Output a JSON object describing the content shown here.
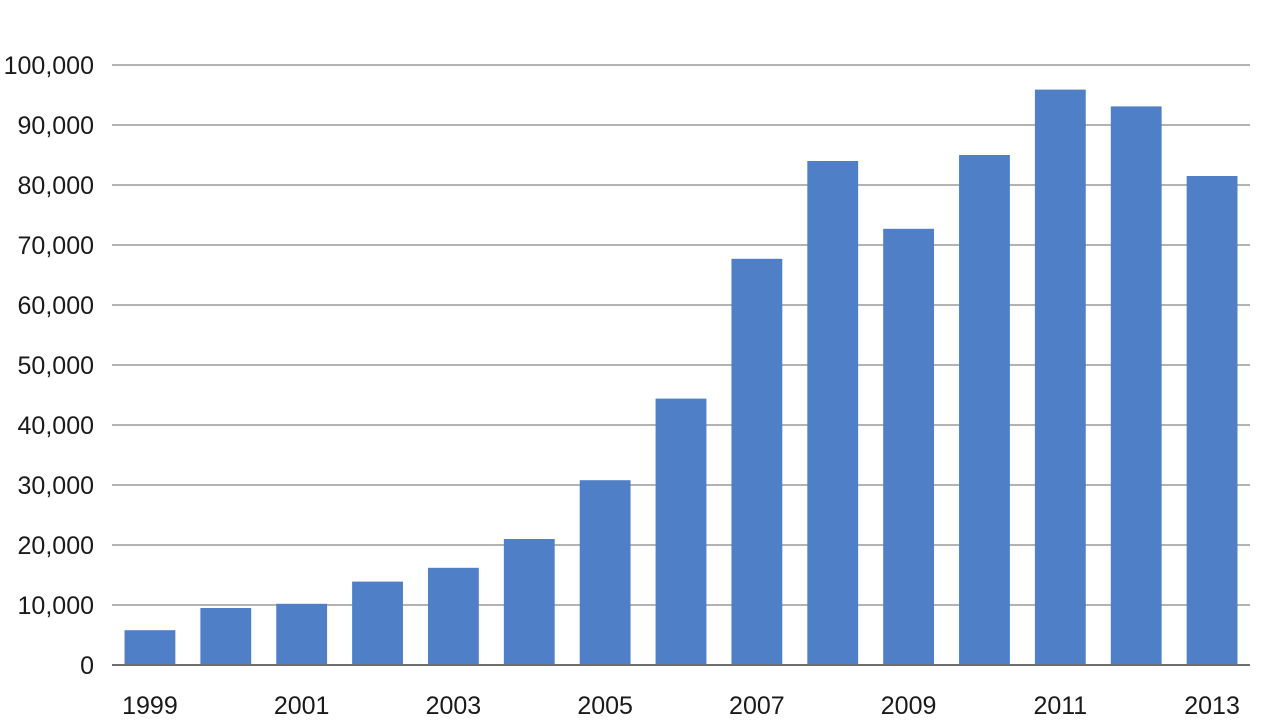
{
  "chart_data": {
    "type": "bar",
    "categories": [
      "1999",
      "2000",
      "2001",
      "2002",
      "2003",
      "2004",
      "2005",
      "2006",
      "2007",
      "2008",
      "2009",
      "2010",
      "2011",
      "2012",
      "2013"
    ],
    "category_labels_shown": [
      "1999",
      "",
      "2001",
      "",
      "2003",
      "",
      "2005",
      "",
      "2007",
      "",
      "2009",
      "",
      "2011",
      "",
      "2013"
    ],
    "values": [
      5800,
      9500,
      10200,
      13900,
      16200,
      21000,
      30800,
      44400,
      67700,
      84000,
      72700,
      85000,
      95900,
      93100,
      81500
    ],
    "y_ticks": [
      0,
      10000,
      20000,
      30000,
      40000,
      50000,
      60000,
      70000,
      80000,
      90000,
      100000
    ],
    "y_tick_labels": [
      "0",
      "10,000",
      "20,000",
      "30,000",
      "40,000",
      "50,000",
      "60,000",
      "70,000",
      "80,000",
      "90,000",
      "100,000"
    ],
    "ylim": [
      0,
      100000
    ],
    "grid": true,
    "legend": "none",
    "title": "",
    "xlabel": "",
    "ylabel": "",
    "colors": {
      "bar": "#4f7fc7",
      "grid": "#9a9a9a"
    }
  }
}
